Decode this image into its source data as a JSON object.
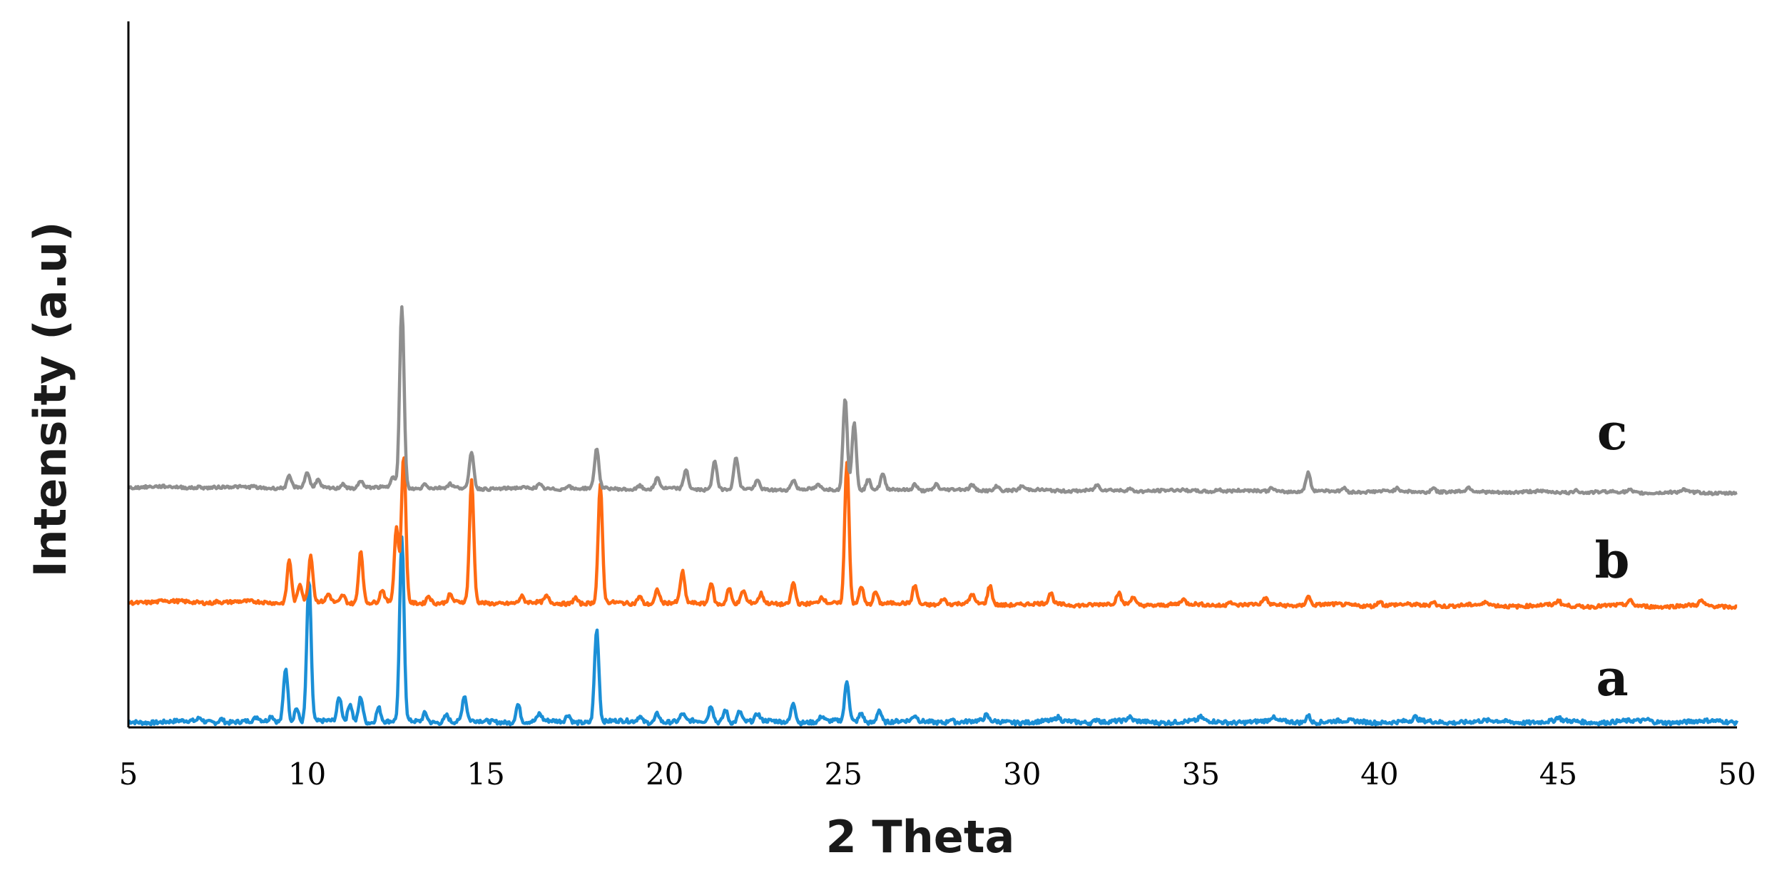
{
  "chart_data": {
    "type": "line",
    "title": "",
    "xlabel": "2 Theta",
    "ylabel": "Intensity (a.u)",
    "xlim": [
      5,
      50
    ],
    "x_ticks": [
      5,
      10,
      15,
      20,
      25,
      30,
      35,
      40,
      45,
      50
    ],
    "y_ticks_shown": false,
    "grid": false,
    "legend": "labels at right end of each trace",
    "offset_note": "traces vertically offset: a bottom, b middle, c top",
    "series": [
      {
        "name": "a",
        "color": "#1b8fd6",
        "baseline": 0,
        "peaks": [
          [
            7.0,
            2
          ],
          [
            7.6,
            2
          ],
          [
            8.6,
            2
          ],
          [
            9.0,
            3
          ],
          [
            9.4,
            30
          ],
          [
            9.7,
            8
          ],
          [
            10.05,
            78
          ],
          [
            10.9,
            13
          ],
          [
            11.2,
            10
          ],
          [
            11.5,
            14
          ],
          [
            12.0,
            8
          ],
          [
            12.65,
            100
          ],
          [
            13.3,
            5
          ],
          [
            13.9,
            4
          ],
          [
            14.4,
            14
          ],
          [
            15.9,
            10
          ],
          [
            16.5,
            4
          ],
          [
            17.3,
            4
          ],
          [
            18.1,
            51
          ],
          [
            19.3,
            3
          ],
          [
            19.8,
            5
          ],
          [
            20.5,
            4
          ],
          [
            21.3,
            9
          ],
          [
            21.7,
            7
          ],
          [
            22.1,
            6
          ],
          [
            22.6,
            4
          ],
          [
            23.6,
            11
          ],
          [
            24.4,
            3
          ],
          [
            25.1,
            22
          ],
          [
            25.5,
            5
          ],
          [
            26.0,
            7
          ],
          [
            27.0,
            3
          ],
          [
            28.0,
            2
          ],
          [
            29.0,
            3
          ],
          [
            31.0,
            2
          ],
          [
            32.1,
            2
          ],
          [
            33.0,
            2
          ],
          [
            35.0,
            2
          ],
          [
            37.0,
            2
          ],
          [
            38.0,
            4
          ],
          [
            41.0,
            2
          ],
          [
            45.0,
            2
          ],
          [
            47.5,
            1
          ]
        ]
      },
      {
        "name": "b",
        "color": "#ff6a12",
        "baseline": 1.1,
        "peaks": [
          [
            6.0,
            1
          ],
          [
            7.5,
            1
          ],
          [
            9.5,
            28
          ],
          [
            9.8,
            12
          ],
          [
            10.1,
            30
          ],
          [
            10.6,
            5
          ],
          [
            11.0,
            5
          ],
          [
            11.5,
            34
          ],
          [
            12.1,
            8
          ],
          [
            12.5,
            48
          ],
          [
            12.7,
            95
          ],
          [
            13.4,
            5
          ],
          [
            14.0,
            5
          ],
          [
            14.6,
            78
          ],
          [
            16.0,
            4
          ],
          [
            16.7,
            4
          ],
          [
            17.5,
            4
          ],
          [
            18.2,
            75
          ],
          [
            19.3,
            5
          ],
          [
            19.8,
            9
          ],
          [
            20.5,
            20
          ],
          [
            21.3,
            14
          ],
          [
            21.8,
            10
          ],
          [
            22.2,
            8
          ],
          [
            22.7,
            6
          ],
          [
            23.6,
            14
          ],
          [
            24.4,
            4
          ],
          [
            25.1,
            92
          ],
          [
            25.5,
            12
          ],
          [
            25.9,
            8
          ],
          [
            27.0,
            12
          ],
          [
            27.8,
            4
          ],
          [
            28.6,
            6
          ],
          [
            29.1,
            12
          ],
          [
            30.8,
            7
          ],
          [
            32.7,
            7
          ],
          [
            33.1,
            5
          ],
          [
            34.5,
            3
          ],
          [
            35.8,
            3
          ],
          [
            36.8,
            4
          ],
          [
            38.0,
            6
          ],
          [
            40.0,
            3
          ],
          [
            41.5,
            3
          ],
          [
            43.0,
            2
          ],
          [
            45.0,
            3
          ],
          [
            47.0,
            3
          ],
          [
            49.0,
            3
          ]
        ]
      },
      {
        "name": "c",
        "color": "#8f8f8f",
        "baseline": 2.3,
        "peaks": [
          [
            7.0,
            1
          ],
          [
            8.5,
            1
          ],
          [
            9.5,
            9
          ],
          [
            10.0,
            12
          ],
          [
            10.3,
            6
          ],
          [
            11.0,
            4
          ],
          [
            11.5,
            6
          ],
          [
            12.4,
            10
          ],
          [
            12.65,
            148
          ],
          [
            13.3,
            4
          ],
          [
            14.0,
            3
          ],
          [
            14.6,
            30
          ],
          [
            16.5,
            3
          ],
          [
            17.3,
            3
          ],
          [
            18.1,
            32
          ],
          [
            19.3,
            3
          ],
          [
            19.8,
            9
          ],
          [
            20.6,
            16
          ],
          [
            21.4,
            24
          ],
          [
            22.0,
            26
          ],
          [
            22.6,
            7
          ],
          [
            23.6,
            8
          ],
          [
            24.3,
            3
          ],
          [
            25.05,
            75
          ],
          [
            25.3,
            55
          ],
          [
            25.7,
            8
          ],
          [
            26.1,
            12
          ],
          [
            27.0,
            5
          ],
          [
            27.6,
            5
          ],
          [
            28.6,
            4
          ],
          [
            29.3,
            4
          ],
          [
            30.0,
            3
          ],
          [
            32.1,
            4
          ],
          [
            33.0,
            2
          ],
          [
            35.5,
            2
          ],
          [
            37.0,
            3
          ],
          [
            38.0,
            15
          ],
          [
            39.0,
            3
          ],
          [
            40.5,
            2
          ],
          [
            41.5,
            4
          ],
          [
            42.5,
            3
          ],
          [
            45.5,
            3
          ],
          [
            47.0,
            2
          ],
          [
            48.5,
            2
          ]
        ]
      }
    ]
  }
}
